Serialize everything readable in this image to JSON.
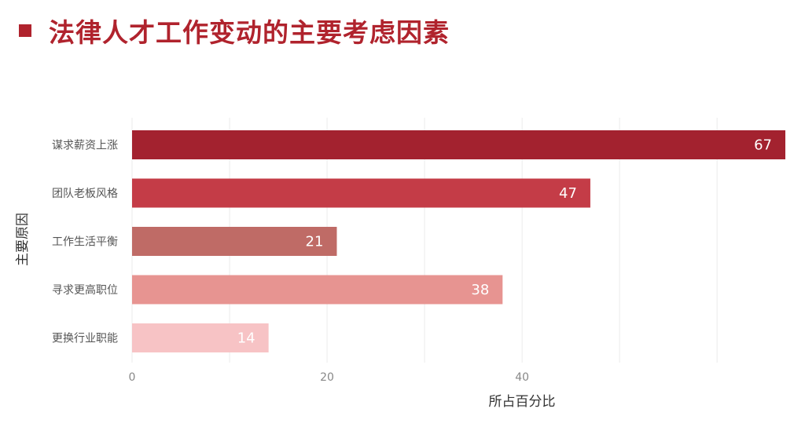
{
  "title": "法律人才工作变动的主要考虑因素",
  "chart_data": {
    "type": "bar",
    "orientation": "horizontal",
    "title": "法律人才工作变动的主要考虑因素",
    "xlabel": "所占百分比",
    "ylabel": "主要原因",
    "categories": [
      "谋求薪资上涨",
      "团队老板风格",
      "工作生活平衡",
      "寻求更高职位",
      "更换行业职能"
    ],
    "values": [
      67,
      47,
      21,
      38,
      14
    ],
    "colors": [
      "#a3222f",
      "#c43c47",
      "#bf6b66",
      "#e79491",
      "#f7c3c5"
    ],
    "xlim": [
      0,
      67
    ],
    "xticks": [
      0,
      20,
      40
    ],
    "grid": true
  }
}
